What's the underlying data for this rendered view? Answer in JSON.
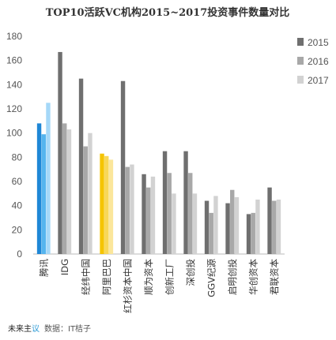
{
  "chart_data": {
    "type": "bar",
    "title": "TOP10活跃VC机构2015~2017投资事件数量对比",
    "categories": [
      "腾讯",
      "IDG",
      "经纬中国",
      "阿里巴巴",
      "红杉资本中国",
      "顺为资本",
      "创新工厂",
      "深创投",
      "GGV纪源",
      "启明创投",
      "华创资本",
      "君联资本"
    ],
    "series": [
      {
        "name": "2015",
        "values": [
          108,
          167,
          145,
          83,
          143,
          66,
          85,
          85,
          44,
          42,
          33,
          55
        ]
      },
      {
        "name": "2016",
        "values": [
          99,
          108,
          89,
          81,
          72,
          55,
          67,
          67,
          34,
          53,
          34,
          44
        ]
      },
      {
        "name": "2017",
        "values": [
          125,
          103,
          100,
          78,
          74,
          64,
          50,
          50,
          48,
          47,
          45,
          45
        ]
      }
    ],
    "highlight_colors": {
      "腾讯": [
        "#1f87d6",
        "#55b4ee",
        "#a5d8f8"
      ],
      "阿里巴巴": [
        "#f5c400",
        "#f8d757",
        "#fbe69b"
      ]
    },
    "default_colors": [
      "#6f6f6f",
      "#a8a8a8",
      "#d2d2d2"
    ],
    "ylim": [
      0,
      180
    ],
    "yticks": [
      0,
      20,
      40,
      60,
      80,
      100,
      120,
      140,
      160,
      180
    ],
    "grid": false,
    "legend_position": "right"
  },
  "footer": {
    "brand_main": "未来主",
    "brand_accent": "议",
    "source": "数据：IT桔子"
  }
}
